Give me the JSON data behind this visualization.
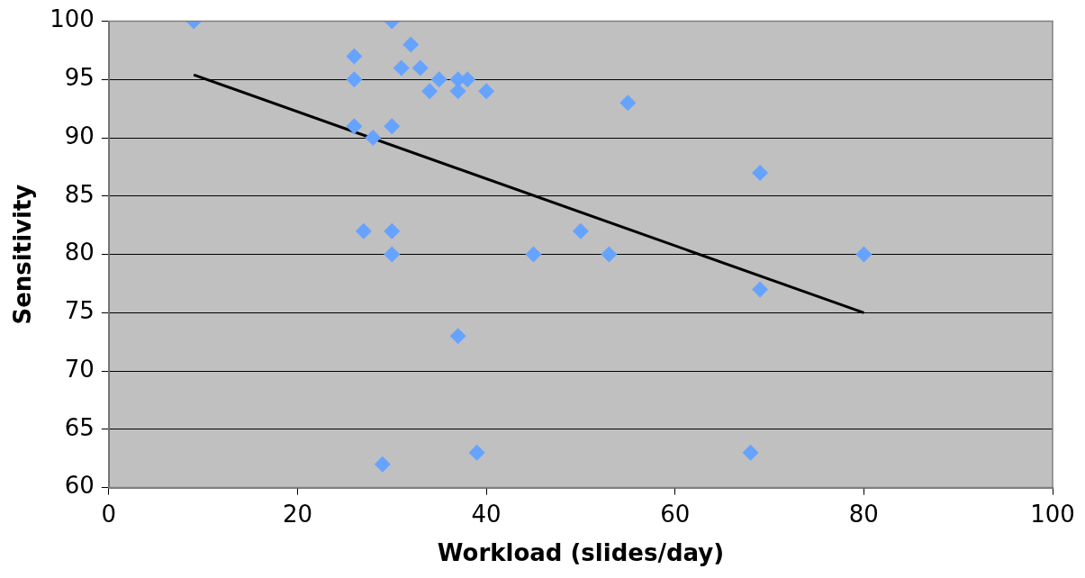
{
  "chart_data": {
    "type": "scatter",
    "xlabel": "Workload (slides/day)",
    "ylabel": "Sensitivity",
    "xlim": [
      0,
      100
    ],
    "xticks": [
      0,
      20,
      40,
      60,
      80,
      100
    ],
    "ylim": [
      60,
      100
    ],
    "yticks": [
      60,
      65,
      70,
      75,
      80,
      85,
      90,
      95,
      100
    ],
    "grid": "y",
    "legend": false,
    "series": [
      {
        "type": "scatter",
        "marker": "diamond",
        "color": "#66a3ff",
        "x": [
          9,
          30,
          32,
          26,
          31,
          33,
          26,
          35,
          37,
          38,
          34,
          37,
          40,
          55,
          26,
          30,
          28,
          69,
          27,
          30,
          50,
          30,
          45,
          53,
          80,
          69,
          37,
          29,
          39,
          68
        ],
        "values": [
          100,
          100,
          98,
          97,
          96,
          96,
          95,
          95,
          95,
          95,
          94,
          94,
          94,
          93,
          91,
          91,
          90,
          87,
          82,
          82,
          82,
          80,
          80,
          80,
          80,
          77,
          73,
          62,
          63,
          63
        ]
      },
      {
        "type": "line",
        "marker": "none",
        "color": "#000000",
        "x": [
          9,
          80
        ],
        "values": [
          95.4,
          75
        ]
      }
    ]
  }
}
